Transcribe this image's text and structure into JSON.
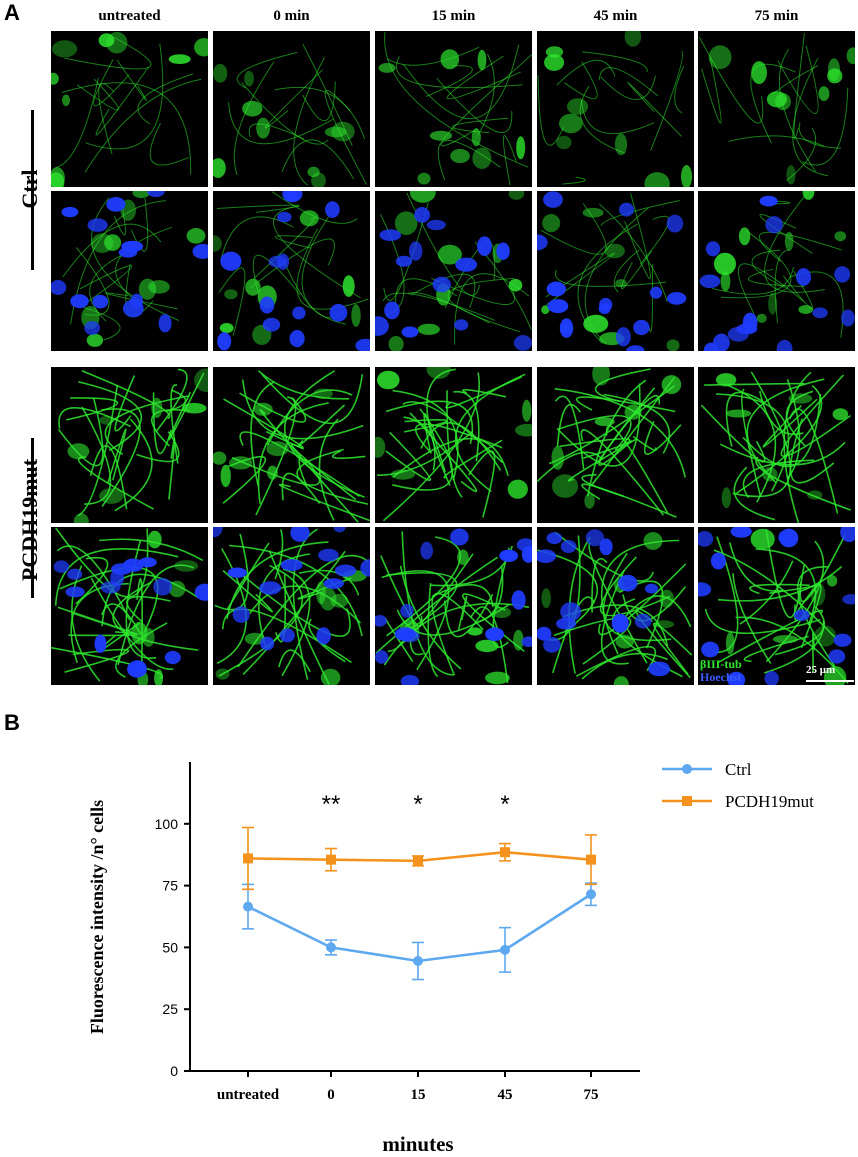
{
  "panel_a": {
    "letter": "A",
    "columns": [
      "untreated",
      "0 min",
      "15 min",
      "45 min",
      "75 min"
    ],
    "row_groups": [
      "Ctrl",
      "PCDH19mut"
    ],
    "stain_legend": {
      "beta_tubulin": "βIII-tub",
      "hoechst": "Hoechst"
    },
    "scale_bar": "25 μm",
    "colors": {
      "beta_tubulin": "#2ee82e",
      "hoechst": "#1f3cff",
      "background": "#000000"
    }
  },
  "panel_b": {
    "letter": "B"
  },
  "chart_data": {
    "type": "line",
    "categories": [
      "untreated",
      "0",
      "15",
      "45",
      "75"
    ],
    "xlabel": "minutes",
    "ylabel": "Fluorescence intensity /n° cells",
    "ylim": [
      0,
      125
    ],
    "yticks": [
      0,
      25,
      50,
      75,
      100
    ],
    "grid": false,
    "legend_position": "top-right",
    "series": [
      {
        "name": "Ctrl",
        "color": "#5ea8f0",
        "marker": "circle",
        "values": [
          66.5,
          50,
          44.5,
          49,
          71.5
        ],
        "errors": [
          9,
          3,
          7.5,
          9,
          4.5
        ]
      },
      {
        "name": "PCDH19mut",
        "color": "#f5921e",
        "marker": "square",
        "values": [
          86,
          85.5,
          85,
          88.5,
          85.5
        ],
        "errors": [
          12.5,
          4.5,
          2,
          3.5,
          10
        ]
      }
    ],
    "annotations": [
      {
        "category": "0",
        "text": "**"
      },
      {
        "category": "15",
        "text": "*"
      },
      {
        "category": "45",
        "text": "*"
      }
    ]
  }
}
